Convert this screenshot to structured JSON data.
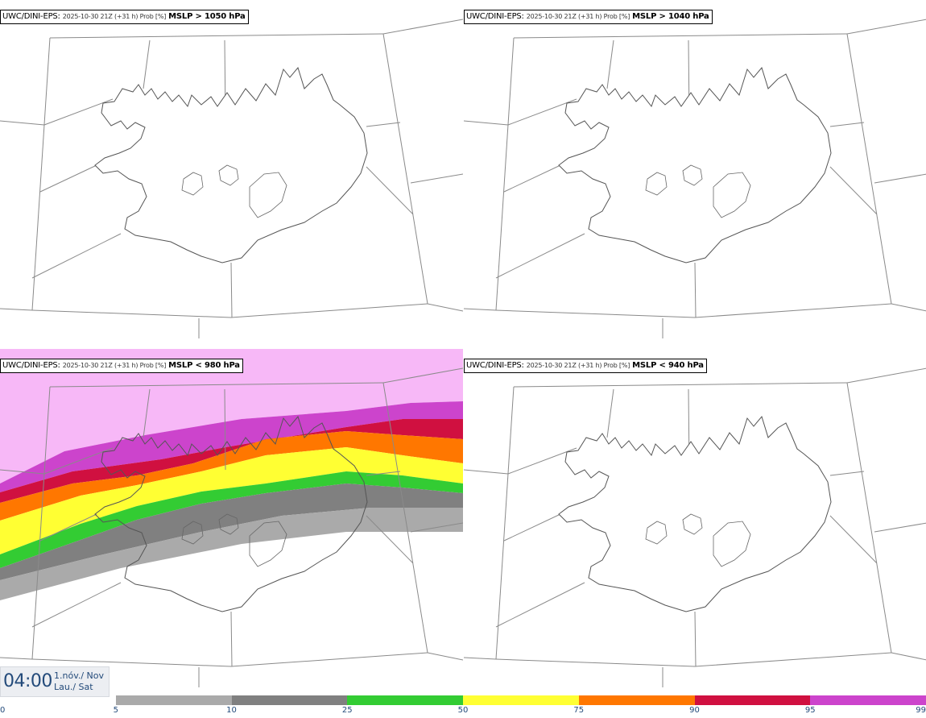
{
  "panels": [
    {
      "model": "UWC/DINI-EPS",
      "meta": "2025-10-30 21Z (+31 h) Prob [%]",
      "field": "MSLP > 1050 hPa",
      "has_data": false
    },
    {
      "model": "UWC/DINI-EPS",
      "meta": "2025-10-30 21Z (+31 h) Prob [%]",
      "field": "MSLP > 1040 hPa",
      "has_data": false
    },
    {
      "model": "UWC/DINI-EPS",
      "meta": "2025-10-30 21Z (+31 h) Prob [%]",
      "field": "MSLP < 980 hPa",
      "has_data": true
    },
    {
      "model": "UWC/DINI-EPS",
      "meta": "2025-10-30 21Z (+31 h) Prob [%]",
      "field": "MSLP < 940 hPa",
      "has_data": false
    }
  ],
  "valid_time": {
    "time": "04:00",
    "date_line1": "1.nóv./ Nov",
    "date_line2": "Lau./ Sat"
  },
  "legend": {
    "ticks": [
      "0",
      "5",
      "10",
      "25",
      "50",
      "75",
      "90",
      "95",
      "99"
    ],
    "colors": [
      "#ffffff",
      "#aaaaaa",
      "#808080",
      "#33cc33",
      "#ffff33",
      "#ff7700",
      "#d01040",
      "#cc44cc",
      "#f7b8f7"
    ]
  }
}
